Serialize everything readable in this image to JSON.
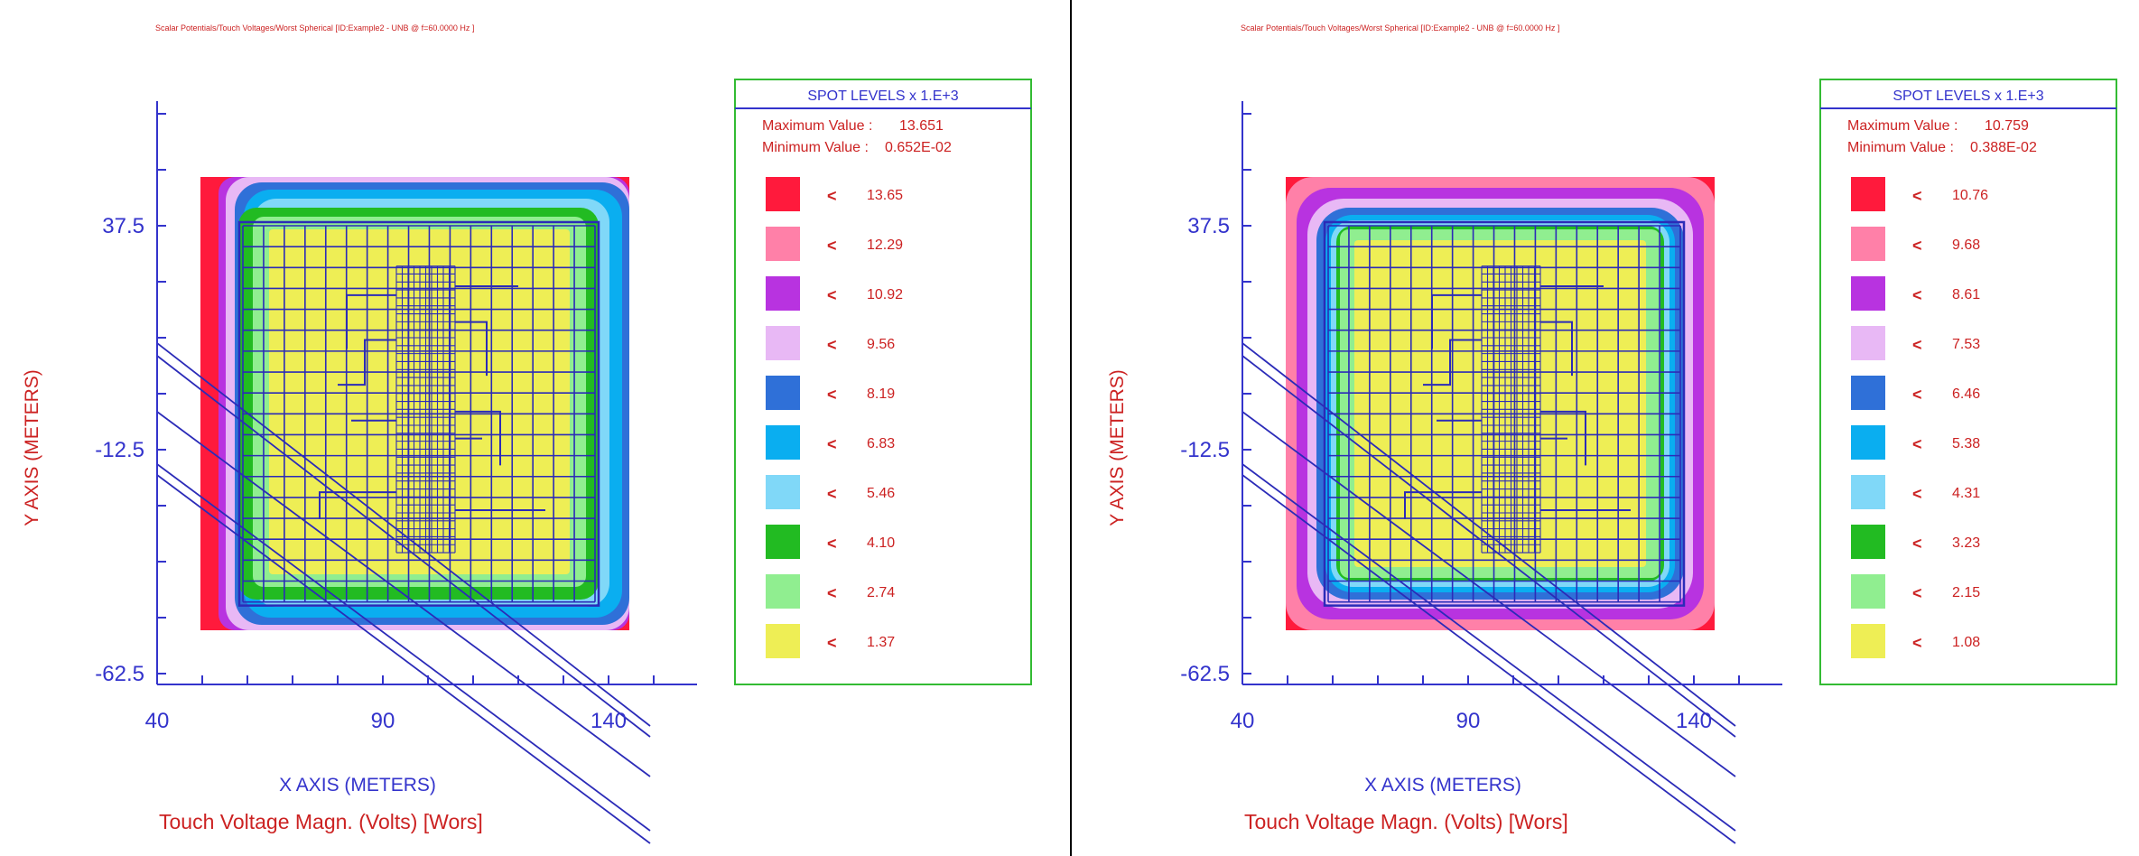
{
  "colors": {
    "axis": "#3333cc",
    "label_red": "#cc2222",
    "legend_border": "#33bb33",
    "conductor": "#2b2bb8",
    "divider": "#000000"
  },
  "chart_data": [
    {
      "type": "heatmap",
      "header": "Scalar Potentials/Touch Voltages/Worst Spherical [ID:Example2 - UNB  @ f=60.0000 Hz ]",
      "xlabel": "X AXIS  (METERS)",
      "ylabel": "Y AXIS  (METERS)",
      "caption": "Touch Voltage Magn. (Volts) [Wors]",
      "x_ticks": [
        "40",
        "90",
        "140"
      ],
      "y_ticks": [
        "37.5",
        "-12.5",
        "-62.5"
      ],
      "xlim": [
        40,
        160
      ],
      "ylim": [
        -62.5,
        67.5
      ],
      "legend_title": "SPOT LEVELS x 1.E+3",
      "max_label": "Maximum Value :",
      "max_value": "13.651",
      "min_label": "Minimum Value :",
      "min_value": "0.652E-02",
      "marker": "<",
      "levels": [
        {
          "value": "13.65",
          "color": "#ff1a3c"
        },
        {
          "value": "12.29",
          "color": "#ff80a8"
        },
        {
          "value": "10.92",
          "color": "#b833e0"
        },
        {
          "value": "9.56",
          "color": "#e8b8f5"
        },
        {
          "value": "8.19",
          "color": "#2f70d8"
        },
        {
          "value": "6.83",
          "color": "#0aaef0"
        },
        {
          "value": "5.46",
          "color": "#80d8f8"
        },
        {
          "value": "4.10",
          "color": "#22bb22"
        },
        {
          "value": "2.74",
          "color": "#90ee90"
        },
        {
          "value": "1.37",
          "color": "#eeee55"
        }
      ]
    },
    {
      "type": "heatmap",
      "header": "Scalar Potentials/Touch Voltages/Worst Spherical [ID:Example2 - UNB  @ f=60.0000 Hz ]",
      "xlabel": "X AXIS  (METERS)",
      "ylabel": "Y AXIS  (METERS)",
      "caption": "Touch Voltage Magn. (Volts) [Wors]",
      "x_ticks": [
        "40",
        "90",
        "140"
      ],
      "y_ticks": [
        "37.5",
        "-12.5",
        "-62.5"
      ],
      "xlim": [
        40,
        160
      ],
      "ylim": [
        -62.5,
        67.5
      ],
      "legend_title": "SPOT LEVELS x 1.E+3",
      "max_label": "Maximum Value :",
      "max_value": "10.759",
      "min_label": "Minimum Value :",
      "min_value": "0.388E-02",
      "marker": "<",
      "levels": [
        {
          "value": "10.76",
          "color": "#ff1a3c"
        },
        {
          "value": "9.68",
          "color": "#ff80a8"
        },
        {
          "value": "8.61",
          "color": "#b833e0"
        },
        {
          "value": "7.53",
          "color": "#e8b8f5"
        },
        {
          "value": "6.46",
          "color": "#2f70d8"
        },
        {
          "value": "5.38",
          "color": "#0aaef0"
        },
        {
          "value": "4.31",
          "color": "#80d8f8"
        },
        {
          "value": "3.23",
          "color": "#22bb22"
        },
        {
          "value": "2.15",
          "color": "#90ee90"
        },
        {
          "value": "1.08",
          "color": "#eeee55"
        }
      ]
    }
  ]
}
